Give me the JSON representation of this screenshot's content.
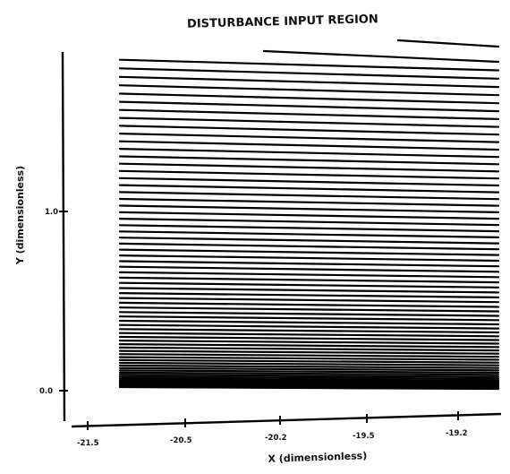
{
  "chart_data": {
    "type": "line",
    "title": "DISTURBANCE INPUT REGION",
    "xlabel": "X (dimensionless)",
    "ylabel": "Y (dimensionless)",
    "x_tick_labels": [
      "-21.5",
      "-20.5",
      "-20.2",
      "-19.5",
      "-19.2"
    ],
    "y_tick_labels": [
      "1.0",
      "0.0"
    ],
    "xlim": [
      -21.5,
      -19.0
    ],
    "ylim": [
      0.0,
      2.0
    ],
    "grid_region": {
      "x_start": -21.2,
      "x_end": -19.0
    },
    "line_count": 70,
    "line_color": "#000000",
    "background": "#ffffff"
  }
}
